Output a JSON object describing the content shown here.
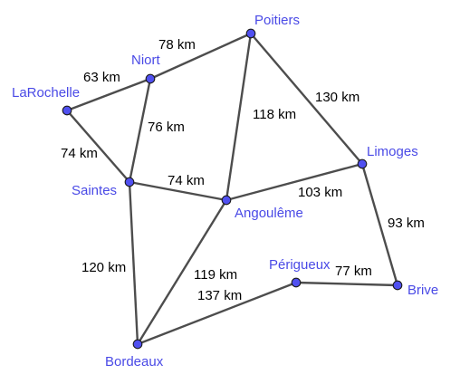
{
  "colors": {
    "node_fill": "#5050f0",
    "city_label": "#4a4ae6",
    "edge": "#4d4d4d",
    "edge_label": "#000000"
  },
  "cities": [
    {
      "id": "poitiers",
      "name": "Poitiers"
    },
    {
      "id": "niort",
      "name": "Niort"
    },
    {
      "id": "larochelle",
      "name": "LaRochelle"
    },
    {
      "id": "saintes",
      "name": "Saintes"
    },
    {
      "id": "angouleme",
      "name": "Angoulême"
    },
    {
      "id": "limoges",
      "name": "Limoges"
    },
    {
      "id": "perigueux",
      "name": "Périgueux"
    },
    {
      "id": "brive",
      "name": "Brive"
    },
    {
      "id": "bordeaux",
      "name": "Bordeaux"
    }
  ],
  "roads": [
    {
      "id": "niort-poitiers",
      "distance": "78 km"
    },
    {
      "id": "larochelle-niort",
      "distance": "63 km"
    },
    {
      "id": "poitiers-limoges",
      "distance": "130 km"
    },
    {
      "id": "poitiers-angouleme",
      "distance": "118 km"
    },
    {
      "id": "niort-saintes",
      "distance": "76 km"
    },
    {
      "id": "larochelle-saintes",
      "distance": "74 km"
    },
    {
      "id": "saintes-angouleme",
      "distance": "74 km"
    },
    {
      "id": "angouleme-limoges",
      "distance": "103 km"
    },
    {
      "id": "limoges-brive",
      "distance": "93 km"
    },
    {
      "id": "saintes-bordeaux",
      "distance": "120 km"
    },
    {
      "id": "angouleme-bordeaux",
      "distance": "119 km"
    },
    {
      "id": "bordeaux-perigueux",
      "distance": "137 km"
    },
    {
      "id": "perigueux-brive",
      "distance": "77 km"
    }
  ]
}
